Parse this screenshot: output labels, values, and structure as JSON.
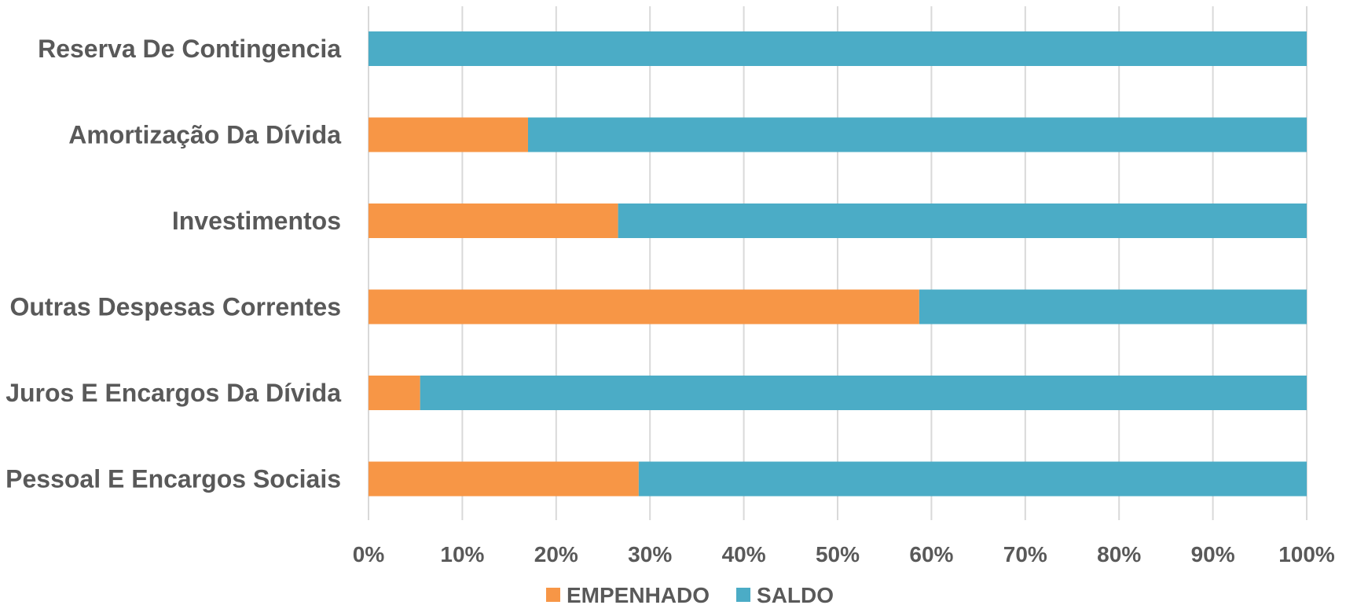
{
  "chart_data": {
    "type": "bar",
    "orientation": "horizontal",
    "stacked": "percent",
    "categories": [
      "Reserva De Contingencia",
      "Amortização Da Dívida",
      "Investimentos",
      "Outras Despesas Correntes",
      "Juros E Encargos Da Dívida",
      "Pessoal E Encargos Sociais"
    ],
    "series": [
      {
        "name": "EMPENHADO",
        "color": "#f79646",
        "values": [
          0,
          17,
          26.6,
          58.7,
          5.5,
          28.8
        ]
      },
      {
        "name": "SALDO",
        "color": "#4bacc6",
        "values": [
          100,
          83,
          73.4,
          41.3,
          94.5,
          71.2
        ]
      }
    ],
    "x_ticks": [
      "0%",
      "10%",
      "20%",
      "30%",
      "40%",
      "50%",
      "60%",
      "70%",
      "80%",
      "90%",
      "100%"
    ],
    "xlim": [
      0,
      100
    ],
    "grid": "vertical",
    "legend_position": "bottom"
  }
}
